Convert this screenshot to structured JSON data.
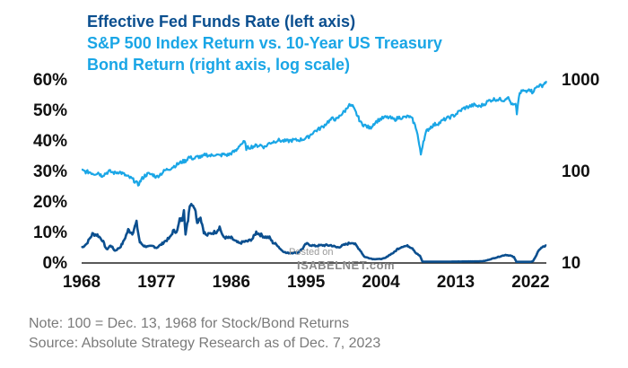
{
  "chart_data": {
    "type": "line",
    "title_lines": [
      "Effective Fed Funds Rate (left axis)",
      "S&P 500 Index Return vs. 10-Year US Treasury",
      "Bond Return (right axis, log scale)"
    ],
    "x_ticks": [
      "1968",
      "1977",
      "1986",
      "1995",
      "2004",
      "2013",
      "2022"
    ],
    "xlim": [
      1968,
      2023.9
    ],
    "left_axis": {
      "ticks": [
        "0%",
        "10%",
        "20%",
        "30%",
        "40%",
        "50%",
        "60%"
      ],
      "ylim": [
        0,
        60
      ],
      "unit": "%"
    },
    "right_axis": {
      "ticks": [
        "10",
        "100",
        "1000"
      ],
      "ylim": [
        10,
        1000
      ],
      "scale": "log"
    },
    "colors": {
      "fed_funds": "#0b4f8f",
      "ratio": "#1aa6e6"
    },
    "series": [
      {
        "name": "Effective Fed Funds Rate",
        "axis": "left",
        "color": "#0b4f8f",
        "x": [
          1968.0,
          1968.6,
          1969.3,
          1969.9,
          1970.5,
          1971.0,
          1971.5,
          1972.0,
          1972.6,
          1973.0,
          1973.6,
          1974.1,
          1974.6,
          1975.0,
          1975.5,
          1976.0,
          1976.6,
          1977.0,
          1977.6,
          1978.0,
          1978.6,
          1979.0,
          1979.5,
          1979.8,
          1980.1,
          1980.3,
          1980.5,
          1980.8,
          1981.0,
          1981.3,
          1981.6,
          1981.9,
          1982.3,
          1982.7,
          1983.0,
          1983.6,
          1984.2,
          1984.6,
          1985.0,
          1985.5,
          1986.0,
          1986.5,
          1987.0,
          1987.5,
          1988.0,
          1988.6,
          1989.0,
          1989.5,
          1990.0,
          1990.6,
          1991.0,
          1991.5,
          1992.0,
          1992.6,
          1993.0,
          1994.0,
          1994.6,
          1995.0,
          1996.0,
          1997.0,
          1998.0,
          1998.7,
          1999.0,
          2000.0,
          2000.6,
          2001.0,
          2001.5,
          2002.0,
          2003.0,
          2004.0,
          2004.5,
          2005.0,
          2005.6,
          2006.0,
          2006.6,
          2007.3,
          2007.8,
          2008.2,
          2008.7,
          2009.0,
          2012.0,
          2015.9,
          2016.5,
          2017.0,
          2018.0,
          2019.0,
          2019.6,
          2020.0,
          2020.3,
          2021.0,
          2022.0,
          2022.3,
          2022.7,
          2023.1,
          2023.6,
          2023.9
        ],
        "values": [
          4.7,
          6.0,
          9.2,
          8.9,
          7.2,
          4.1,
          5.5,
          3.7,
          4.8,
          6.5,
          10.5,
          9.5,
          12.9,
          6.5,
          5.3,
          5.0,
          5.2,
          4.7,
          5.8,
          6.8,
          7.9,
          10.1,
          10.2,
          13.8,
          14.0,
          17.6,
          9.0,
          13.9,
          18.9,
          19.1,
          17.8,
          13.3,
          14.7,
          10.0,
          8.7,
          9.5,
          10.0,
          11.5,
          8.3,
          7.9,
          7.9,
          6.8,
          6.1,
          6.7,
          6.8,
          7.8,
          9.8,
          9.0,
          8.3,
          8.0,
          6.4,
          5.7,
          4.0,
          3.0,
          3.0,
          3.1,
          4.5,
          6.0,
          5.3,
          5.5,
          5.5,
          4.8,
          5.0,
          6.0,
          6.5,
          5.5,
          3.9,
          1.75,
          1.0,
          1.0,
          1.3,
          2.3,
          3.2,
          4.3,
          5.2,
          5.25,
          4.6,
          3.0,
          2.0,
          0.15,
          0.15,
          0.25,
          0.4,
          0.8,
          1.6,
          2.4,
          2.1,
          1.6,
          0.1,
          0.08,
          0.08,
          0.3,
          2.3,
          4.3,
          5.1,
          5.33
        ]
      },
      {
        "name": "S&P 500 Index Return vs. 10-Year US Treasury Bond Return",
        "axis": "right",
        "color": "#1aa6e6",
        "x": [
          1968.0,
          1968.5,
          1969.0,
          1969.5,
          1970.0,
          1970.4,
          1970.8,
          1971.3,
          1972.0,
          1972.5,
          1973.0,
          1973.5,
          1974.0,
          1974.5,
          1974.8,
          1975.2,
          1975.6,
          1976.0,
          1976.6,
          1977.0,
          1977.6,
          1978.0,
          1978.6,
          1979.0,
          1979.6,
          1980.1,
          1980.5,
          1980.9,
          1981.5,
          1982.0,
          1982.5,
          1982.9,
          1983.5,
          1984.0,
          1984.6,
          1985.0,
          1985.6,
          1986.0,
          1986.6,
          1987.0,
          1987.6,
          1987.8,
          1988.2,
          1988.8,
          1989.5,
          1990.0,
          1990.6,
          1991.0,
          1991.6,
          1992.2,
          1992.8,
          1993.4,
          1994.0,
          1994.6,
          1995.2,
          1995.8,
          1996.4,
          1997.0,
          1997.6,
          1998.2,
          1998.7,
          1999.2,
          1999.7,
          2000.1,
          2000.6,
          2001.1,
          2001.6,
          2002.1,
          2002.7,
          2003.2,
          2003.8,
          2004.4,
          2005.0,
          2005.6,
          2006.2,
          2006.8,
          2007.4,
          2007.8,
          2008.3,
          2008.8,
          2009.1,
          2009.5,
          2010.0,
          2010.5,
          2011.0,
          2011.6,
          2012.2,
          2012.8,
          2013.4,
          2014.0,
          2014.6,
          2015.2,
          2015.8,
          2016.4,
          2017.0,
          2017.6,
          2018.2,
          2018.8,
          2019.2,
          2019.8,
          2020.2,
          2020.35,
          2020.6,
          2021.0,
          2021.5,
          2021.8,
          2022.2,
          2022.6,
          2022.9,
          2023.3,
          2023.6,
          2023.9
        ],
        "values": [
          100,
          97,
          96,
          92,
          95,
          88,
          92,
          98,
          94,
          97,
          92,
          86,
          82,
          75,
          70,
          80,
          88,
          92,
          90,
          85,
          93,
          100,
          105,
          110,
          118,
          125,
          128,
          140,
          135,
          142,
          140,
          150,
          145,
          150,
          145,
          150,
          148,
          155,
          165,
          190,
          205,
          175,
          180,
          185,
          190,
          180,
          200,
          205,
          215,
          210,
          210,
          215,
          215,
          220,
          230,
          260,
          280,
          300,
          340,
          370,
          360,
          410,
          450,
          520,
          500,
          410,
          330,
          310,
          290,
          330,
          360,
          380,
          380,
          360,
          380,
          380,
          390,
          360,
          280,
          150,
          210,
          270,
          300,
          320,
          330,
          360,
          380,
          400,
          440,
          480,
          500,
          520,
          500,
          530,
          580,
          600,
          600,
          590,
          640,
          520,
          520,
          420,
          650,
          750,
          720,
          800,
          720,
          790,
          850,
          840,
          880,
          950
        ]
      }
    ],
    "watermark": [
      "Posted on",
      "ISABELNET.com"
    ]
  },
  "notes": [
    "Note: 100 = Dec. 13, 1968 for Stock/Bond Returns",
    "Source: Absolute Strategy Research as of Dec. 7, 2023"
  ]
}
